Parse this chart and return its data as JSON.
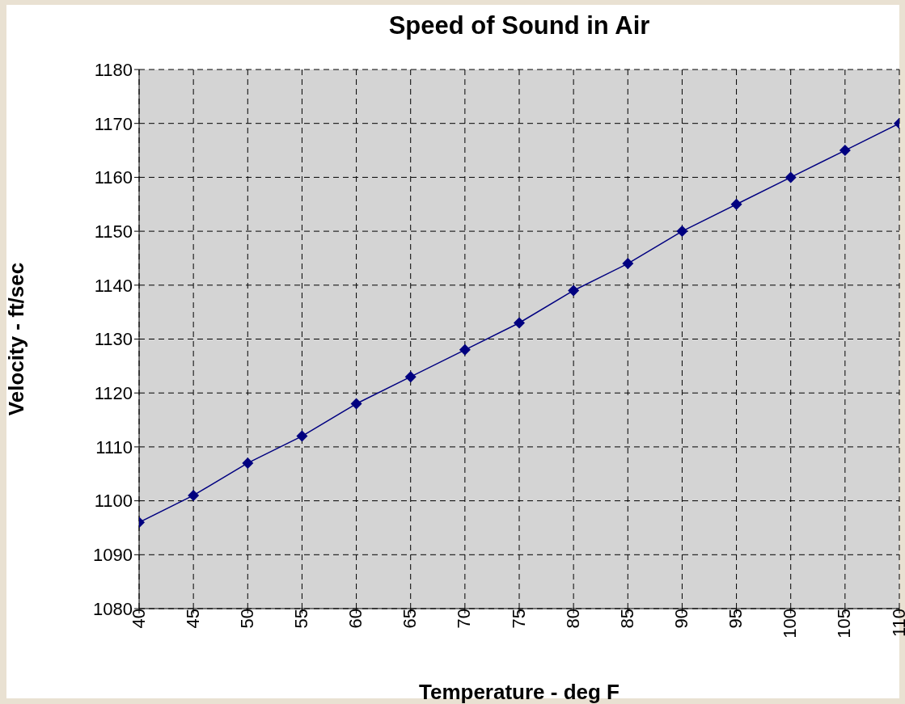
{
  "chart_data": {
    "type": "line",
    "title": "Speed of Sound in Air",
    "xlabel": "Temperature - deg F",
    "ylabel": "Velocity - ft/sec",
    "x": [
      40,
      45,
      50,
      55,
      60,
      65,
      70,
      75,
      80,
      85,
      90,
      95,
      100,
      105,
      110
    ],
    "series": [
      {
        "color": "#000080",
        "values": [
          1096,
          1101,
          1107,
          1112,
          1118,
          1123,
          1128,
          1133,
          1139,
          1144,
          1150,
          1155,
          1160,
          1165,
          1170
        ]
      }
    ],
    "xlim": [
      40,
      110
    ],
    "xticks": [
      40,
      45,
      50,
      55,
      60,
      65,
      70,
      75,
      80,
      85,
      90,
      95,
      100,
      105,
      110
    ],
    "ylim": [
      1080,
      1180
    ],
    "yticks": [
      1080,
      1090,
      1100,
      1110,
      1120,
      1130,
      1140,
      1150,
      1160,
      1170,
      1180
    ],
    "grid": true,
    "marker": "diamond",
    "line_style": "solid"
  }
}
